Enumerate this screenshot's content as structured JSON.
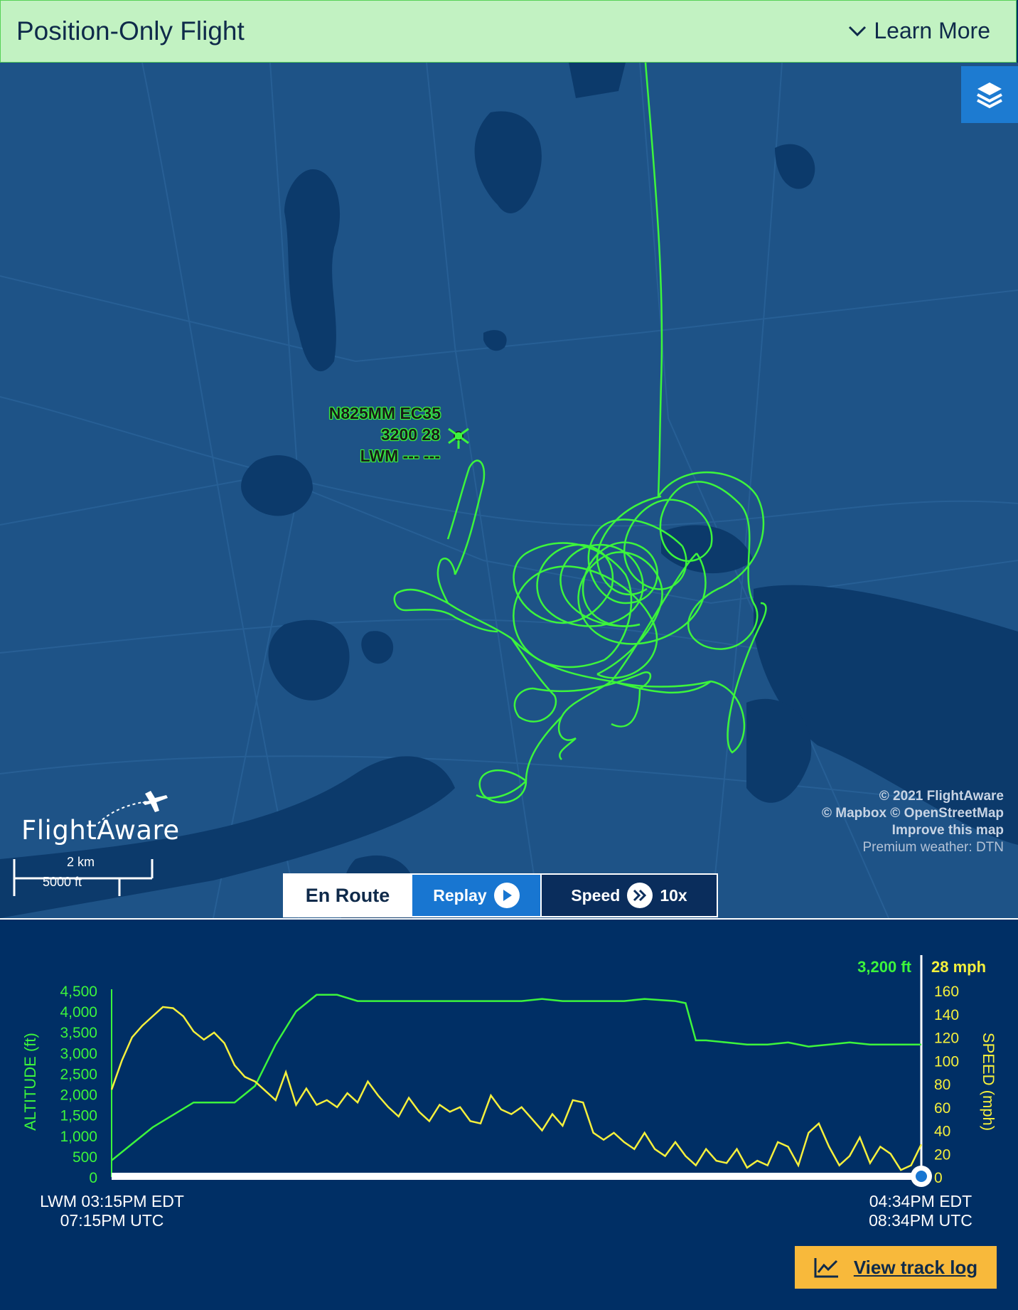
{
  "banner": {
    "title": "Position-Only Flight",
    "learn_more": "Learn More"
  },
  "map": {
    "flight_label": {
      "line1": "N825MM EC35",
      "line2": "3200 28",
      "line3": "LWM --- ---"
    },
    "copyright": {
      "line1": "© 2021 FlightAware",
      "line2": "© Mapbox © OpenStreetMap",
      "line3": "Improve this map",
      "line4": "Premium weather: DTN"
    },
    "logo_text": "FlightAware",
    "scale": {
      "km": "2 km",
      "ft": "5000 ft"
    },
    "colors": {
      "track": "#3cf53c",
      "water": "#0c3a6b",
      "land": "#1e5387"
    }
  },
  "controls": {
    "enroute": "En Route",
    "replay": "Replay",
    "speed": "Speed",
    "speed_value": "10x"
  },
  "chart_data": {
    "type": "line",
    "current_altitude": "3,200 ft",
    "current_speed": "28 mph",
    "left_axis": {
      "label": "ALTITUDE (ft)",
      "ticks": [
        "4,500",
        "4,000",
        "3,500",
        "3,000",
        "2,500",
        "2,000",
        "1,500",
        "1,000",
        "500",
        "0"
      ],
      "ylim": [
        0,
        4500
      ],
      "color": "#3cf53c"
    },
    "right_axis": {
      "label": "SPEED (mph)",
      "ticks": [
        "160",
        "140",
        "120",
        "100",
        "80",
        "60",
        "40",
        "20",
        "0"
      ],
      "ylim": [
        0,
        160
      ],
      "color": "#f5f03c"
    },
    "x_range_minutes": [
      0,
      79
    ],
    "series": [
      {
        "name": "ALTITUDE (ft)",
        "axis": "left",
        "points": [
          [
            0,
            400
          ],
          [
            2,
            800
          ],
          [
            4,
            1200
          ],
          [
            6,
            1500
          ],
          [
            8,
            1800
          ],
          [
            12,
            1800
          ],
          [
            14,
            2200
          ],
          [
            16,
            3200
          ],
          [
            18,
            4000
          ],
          [
            20,
            4400
          ],
          [
            22,
            4400
          ],
          [
            24,
            4250
          ],
          [
            30,
            4250
          ],
          [
            40,
            4250
          ],
          [
            42,
            4300
          ],
          [
            44,
            4250
          ],
          [
            50,
            4250
          ],
          [
            52,
            4300
          ],
          [
            55,
            4250
          ],
          [
            56,
            4200
          ],
          [
            57,
            3300
          ],
          [
            58,
            3300
          ],
          [
            60,
            3250
          ],
          [
            62,
            3200
          ],
          [
            64,
            3200
          ],
          [
            66,
            3250
          ],
          [
            68,
            3150
          ],
          [
            70,
            3200
          ],
          [
            72,
            3250
          ],
          [
            74,
            3200
          ],
          [
            76,
            3200
          ],
          [
            78,
            3200
          ],
          [
            79,
            3200
          ]
        ]
      },
      {
        "name": "SPEED (mph)",
        "axis": "right",
        "points": [
          [
            0,
            75
          ],
          [
            1,
            100
          ],
          [
            2,
            120
          ],
          [
            3,
            130
          ],
          [
            4,
            138
          ],
          [
            5,
            146
          ],
          [
            6,
            145
          ],
          [
            7,
            138
          ],
          [
            8,
            125
          ],
          [
            9,
            118
          ],
          [
            10,
            124
          ],
          [
            11,
            115
          ],
          [
            12,
            96
          ],
          [
            13,
            86
          ],
          [
            14,
            82
          ],
          [
            15,
            74
          ],
          [
            16,
            66
          ],
          [
            17,
            90
          ],
          [
            18,
            62
          ],
          [
            19,
            76
          ],
          [
            20,
            62
          ],
          [
            21,
            66
          ],
          [
            22,
            60
          ],
          [
            23,
            72
          ],
          [
            24,
            64
          ],
          [
            25,
            82
          ],
          [
            26,
            70
          ],
          [
            27,
            60
          ],
          [
            28,
            52
          ],
          [
            29,
            68
          ],
          [
            30,
            56
          ],
          [
            31,
            48
          ],
          [
            32,
            62
          ],
          [
            33,
            56
          ],
          [
            34,
            60
          ],
          [
            35,
            48
          ],
          [
            36,
            46
          ],
          [
            37,
            70
          ],
          [
            38,
            58
          ],
          [
            39,
            54
          ],
          [
            40,
            60
          ],
          [
            41,
            50
          ],
          [
            42,
            40
          ],
          [
            43,
            54
          ],
          [
            44,
            44
          ],
          [
            45,
            66
          ],
          [
            46,
            64
          ],
          [
            47,
            38
          ],
          [
            48,
            32
          ],
          [
            49,
            38
          ],
          [
            50,
            30
          ],
          [
            51,
            24
          ],
          [
            52,
            38
          ],
          [
            53,
            24
          ],
          [
            54,
            18
          ],
          [
            55,
            30
          ],
          [
            56,
            18
          ],
          [
            57,
            10
          ],
          [
            58,
            24
          ],
          [
            59,
            14
          ],
          [
            60,
            12
          ],
          [
            61,
            24
          ],
          [
            62,
            8
          ],
          [
            63,
            14
          ],
          [
            64,
            10
          ],
          [
            65,
            30
          ],
          [
            66,
            26
          ],
          [
            67,
            10
          ],
          [
            68,
            38
          ],
          [
            69,
            46
          ],
          [
            70,
            26
          ],
          [
            71,
            10
          ],
          [
            72,
            18
          ],
          [
            73,
            34
          ],
          [
            74,
            12
          ],
          [
            75,
            26
          ],
          [
            76,
            20
          ],
          [
            77,
            6
          ],
          [
            78,
            10
          ],
          [
            79,
            28
          ]
        ]
      }
    ],
    "start_time": {
      "line1": "LWM 03:15PM EDT",
      "line2": "07:15PM UTC"
    },
    "end_time": {
      "line1": "04:34PM EDT",
      "line2": "08:34PM UTC"
    }
  },
  "track_log_button": "View track log"
}
